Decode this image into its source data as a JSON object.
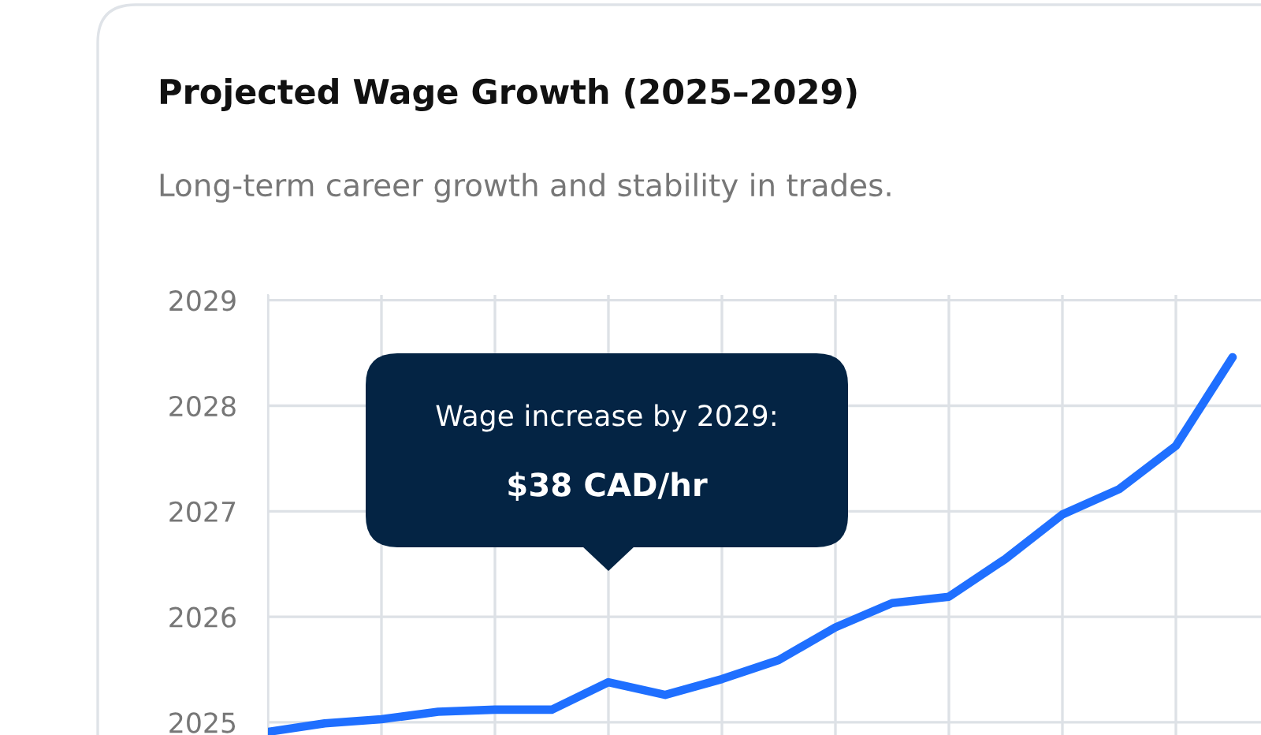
{
  "chart_data": {
    "type": "line",
    "title": "Projected Wage Growth (2025–2029)",
    "subtitle": "Long-term career growth and stability in trades.",
    "annotations": [
      "Wage increase by 2029:",
      "$38 CAD/hr"
    ],
    "categories": [
      null,
      null,
      null,
      null,
      null,
      null,
      null,
      null,
      null,
      null,
      null,
      null,
      null,
      null,
      null,
      null,
      null,
      null
    ],
    "series": [
      {
        "color": "#1f6fff",
        "values": [
          2024.91,
          2024.99,
          2025.03,
          2025.1,
          2025.12,
          2025.12,
          2025.38,
          2025.26,
          2025.41,
          2025.59,
          2025.9,
          2026.13,
          2026.19,
          2026.55,
          2026.97,
          2027.21,
          2027.62,
          2028.46
        ]
      }
    ],
    "ylim": [
      2024.88,
      2029.05
    ],
    "yticks": [
      2025,
      2026,
      2027,
      2028,
      2029
    ],
    "tick_labels": "y",
    "grid": true,
    "marker": "none",
    "line_style": "solid",
    "legend": false
  }
}
